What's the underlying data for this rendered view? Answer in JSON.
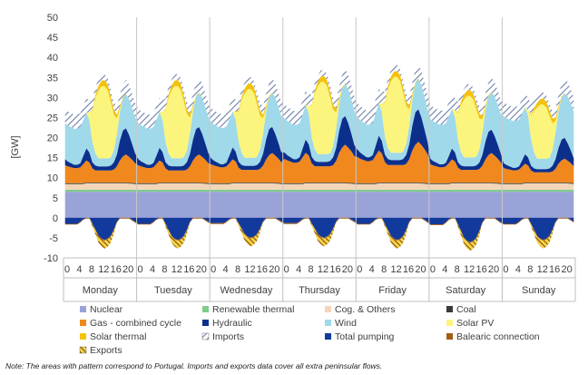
{
  "chart_data": {
    "type": "area",
    "ylabel": "[GW]",
    "ylim": [
      -10,
      50
    ],
    "yticks": [
      -10,
      -5,
      0,
      5,
      10,
      15,
      20,
      25,
      30,
      35,
      40,
      45,
      50
    ],
    "days": [
      "Monday",
      "Tuesday",
      "Wednesday",
      "Thursday",
      "Friday",
      "Saturday",
      "Sunday"
    ],
    "hour_labels": [
      "0",
      "4",
      "8",
      "12",
      "16",
      "20"
    ],
    "hours_per_day": 24,
    "hourly_profiles": {
      "nuclear": [
        6.5,
        6.5,
        6.5,
        6.5,
        6.5,
        6.5,
        6.5,
        6.5,
        6.5,
        6.5,
        6.5,
        6.5,
        6.5,
        6.5,
        6.5,
        6.5,
        6.5,
        6.5,
        6.5,
        6.5,
        6.5,
        6.5,
        6.5,
        6.5
      ],
      "renewable_thermal": [
        0.5,
        0.5,
        0.5,
        0.5,
        0.5,
        0.5,
        0.5,
        0.5,
        0.5,
        0.5,
        0.5,
        0.5,
        0.5,
        0.5,
        0.5,
        0.5,
        0.5,
        0.5,
        0.5,
        0.5,
        0.5,
        0.5,
        0.5,
        0.5
      ],
      "cog_others": [
        1.4,
        1.4,
        1.4,
        1.4,
        1.4,
        1.4,
        1.4,
        1.6,
        1.6,
        1.6,
        1.6,
        1.6,
        1.6,
        1.6,
        1.6,
        1.6,
        1.6,
        1.6,
        1.6,
        1.6,
        1.6,
        1.5,
        1.5,
        1.4
      ],
      "coal": [
        0.2,
        0.2,
        0.2,
        0.2,
        0.2,
        0.2,
        0.2,
        0.2,
        0.2,
        0.2,
        0.2,
        0.2,
        0.2,
        0.2,
        0.2,
        0.2,
        0.2,
        0.2,
        0.2,
        0.2,
        0.2,
        0.2,
        0.2,
        0.2
      ],
      "gas_combined_cycle": [
        4.5,
        4.2,
        4.0,
        3.8,
        3.8,
        4.0,
        4.8,
        5.5,
        5.0,
        3.5,
        3.0,
        3.0,
        3.0,
        3.0,
        3.0,
        3.0,
        3.2,
        4.0,
        5.5,
        6.5,
        7.0,
        6.5,
        5.8,
        5.0
      ],
      "hydraulic": [
        1.5,
        1.2,
        1.0,
        0.8,
        0.8,
        1.0,
        2.0,
        3.0,
        2.5,
        1.5,
        1.2,
        1.0,
        1.0,
        1.0,
        1.0,
        1.2,
        1.8,
        3.0,
        5.0,
        6.5,
        6.5,
        5.5,
        4.0,
        2.5
      ],
      "wind": [
        9.0,
        9.0,
        9.0,
        9.0,
        9.0,
        9.0,
        9.0,
        9.0,
        8.0,
        5.0,
        3.0,
        2.0,
        2.0,
        2.0,
        2.0,
        2.0,
        3.0,
        5.0,
        7.0,
        8.0,
        8.5,
        9.0,
        9.0,
        9.0
      ],
      "solar_pv": [
        0,
        0,
        0,
        0,
        0,
        0,
        0,
        0,
        2,
        8,
        14,
        17,
        18,
        18,
        17,
        14,
        9,
        4,
        1,
        0,
        0,
        0,
        0,
        0
      ],
      "solar_thermal": [
        0,
        0,
        0,
        0,
        0,
        0,
        0,
        0,
        0,
        0.3,
        0.8,
        1.2,
        1.4,
        1.5,
        1.5,
        1.4,
        1.2,
        0.9,
        0.6,
        0.3,
        0.1,
        0,
        0,
        0
      ],
      "imports": [
        3.5,
        3.5,
        3.5,
        3.5,
        3.5,
        3.5,
        3.5,
        3.5,
        3.0,
        2.5,
        2.0,
        1.5,
        1.5,
        1.5,
        1.5,
        1.5,
        1.8,
        2.2,
        2.8,
        3.2,
        3.5,
        3.5,
        3.5,
        3.5
      ],
      "total_pumping": [
        -1.5,
        -1.5,
        -1.5,
        -1.5,
        -1.5,
        -1.0,
        -0.3,
        0,
        0,
        -1.5,
        -3.0,
        -4.5,
        -5.2,
        -5.5,
        -5.2,
        -4.5,
        -3.0,
        -1.0,
        0,
        0,
        0,
        0,
        -0.5,
        -1.0
      ],
      "balearic_connection": [
        -0.2,
        -0.2,
        -0.2,
        -0.2,
        -0.2,
        -0.2,
        -0.2,
        -0.2,
        -0.2,
        -0.2,
        -0.2,
        -0.2,
        -0.2,
        -0.2,
        -0.2,
        -0.2,
        -0.2,
        -0.2,
        -0.2,
        -0.2,
        -0.2,
        -0.2,
        -0.2,
        -0.2
      ],
      "exports": [
        0,
        0,
        0,
        0,
        0,
        0,
        0,
        0,
        0,
        -0.5,
        -1.0,
        -1.5,
        -1.8,
        -2.0,
        -1.8,
        -1.5,
        -0.8,
        0,
        0,
        0,
        0,
        0,
        0,
        0
      ]
    },
    "day_scale": {
      "solar_pv": [
        1.0,
        1.0,
        0.95,
        1.0,
        1.05,
        0.85,
        0.75
      ],
      "gas_combined_cycle": [
        1.0,
        1.0,
        1.05,
        1.35,
        1.45,
        1.05,
        0.85
      ],
      "hydraulic": [
        1.0,
        1.05,
        1.0,
        1.1,
        1.25,
        0.9,
        0.8
      ],
      "wind": [
        1.0,
        1.0,
        1.0,
        0.95,
        0.9,
        1.1,
        1.3
      ],
      "total_pumping": [
        1.0,
        1.0,
        0.9,
        0.9,
        1.0,
        1.1,
        1.0
      ]
    },
    "series": [
      {
        "key": "nuclear",
        "name": "Nuclear",
        "color": "#9aa3d8",
        "pattern": false
      },
      {
        "key": "renewable_thermal",
        "name": "Renewable thermal",
        "color": "#7fcc8a",
        "pattern": false
      },
      {
        "key": "cog_others",
        "name": "Cog. & Others",
        "color": "#f3d6b9",
        "pattern": false
      },
      {
        "key": "coal",
        "name": "Coal",
        "color": "#3a3a3a",
        "pattern": false
      },
      {
        "key": "gas_combined_cycle",
        "name": "Gas - combined cycle",
        "color": "#f0881e",
        "pattern": false
      },
      {
        "key": "hydraulic",
        "name": "Hydraulic",
        "color": "#0d2f8c",
        "pattern": false
      },
      {
        "key": "wind",
        "name": "Wind",
        "color": "#9fd9ea",
        "pattern": false
      },
      {
        "key": "solar_pv",
        "name": "Solar PV",
        "color": "#fbf47d",
        "pattern": false
      },
      {
        "key": "solar_thermal",
        "name": "Solar thermal",
        "color": "#f4c20d",
        "pattern": false
      },
      {
        "key": "imports",
        "name": "Imports",
        "color": "#6d7fa8",
        "pattern": true
      },
      {
        "key": "total_pumping",
        "name": "Total pumping",
        "color": "#123a9c",
        "pattern": false
      },
      {
        "key": "balearic_connection",
        "name": "Balearic connection",
        "color": "#a35c13",
        "pattern": false
      },
      {
        "key": "exports",
        "name": "Exports",
        "color": "#8a5a10",
        "pattern": true
      }
    ],
    "legend_position": "bottom",
    "grid": false
  },
  "note": "Note: The areas with pattern correspond to Portugal. Imports and exports data cover all extra peninsular flows."
}
